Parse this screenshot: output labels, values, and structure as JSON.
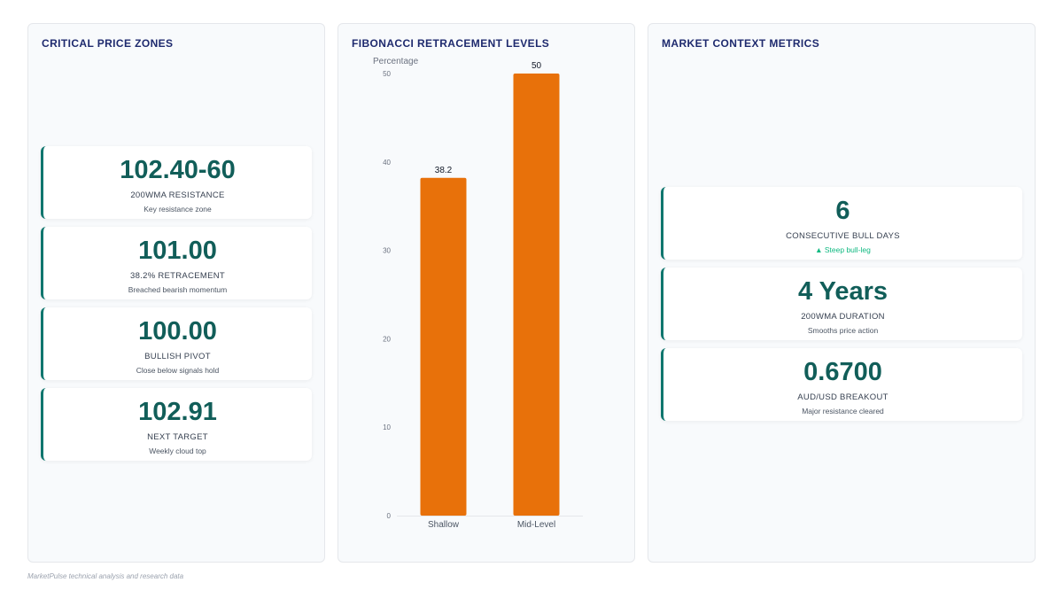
{
  "left_panel": {
    "title": "CRITICAL PRICE ZONES",
    "cards": [
      {
        "value": "102.40-60",
        "label": "200WMA RESISTANCE",
        "sub": "Key resistance zone"
      },
      {
        "value": "101.00",
        "label": "38.2% RETRACEMENT",
        "sub": "Breached bearish momentum"
      },
      {
        "value": "100.00",
        "label": "BULLISH PIVOT",
        "sub": "Close below signals hold"
      },
      {
        "value": "102.91",
        "label": "NEXT TARGET",
        "sub": "Weekly cloud top"
      }
    ]
  },
  "mid_panel": {
    "title": "FIBONACCI RETRACEMENT LEVELS"
  },
  "right_panel": {
    "title": "MARKET CONTEXT METRICS",
    "cards": [
      {
        "value": "6",
        "label": "CONSECUTIVE BULL DAYS",
        "sub": "▲ Steep bull-leg"
      },
      {
        "value": "4 Years",
        "label": "200WMA DURATION",
        "sub": "Smooths price action"
      },
      {
        "value": "0.6700",
        "label": "AUD/USD BREAKOUT",
        "sub": "Major resistance cleared"
      }
    ]
  },
  "chart_data": {
    "type": "bar",
    "title": "",
    "xlabel": "",
    "ylabel": "Percentage",
    "categories": [
      "Shallow",
      "Mid-Level"
    ],
    "values": [
      38.2,
      50
    ],
    "data_labels": [
      "38.2",
      "50"
    ],
    "ylim": [
      0,
      50
    ],
    "yticks": [
      0,
      10,
      20,
      30,
      40,
      50
    ],
    "grid": false,
    "legend": "none",
    "bar_color": "#e8710a"
  },
  "footer": "MarketPulse technical analysis and research data"
}
